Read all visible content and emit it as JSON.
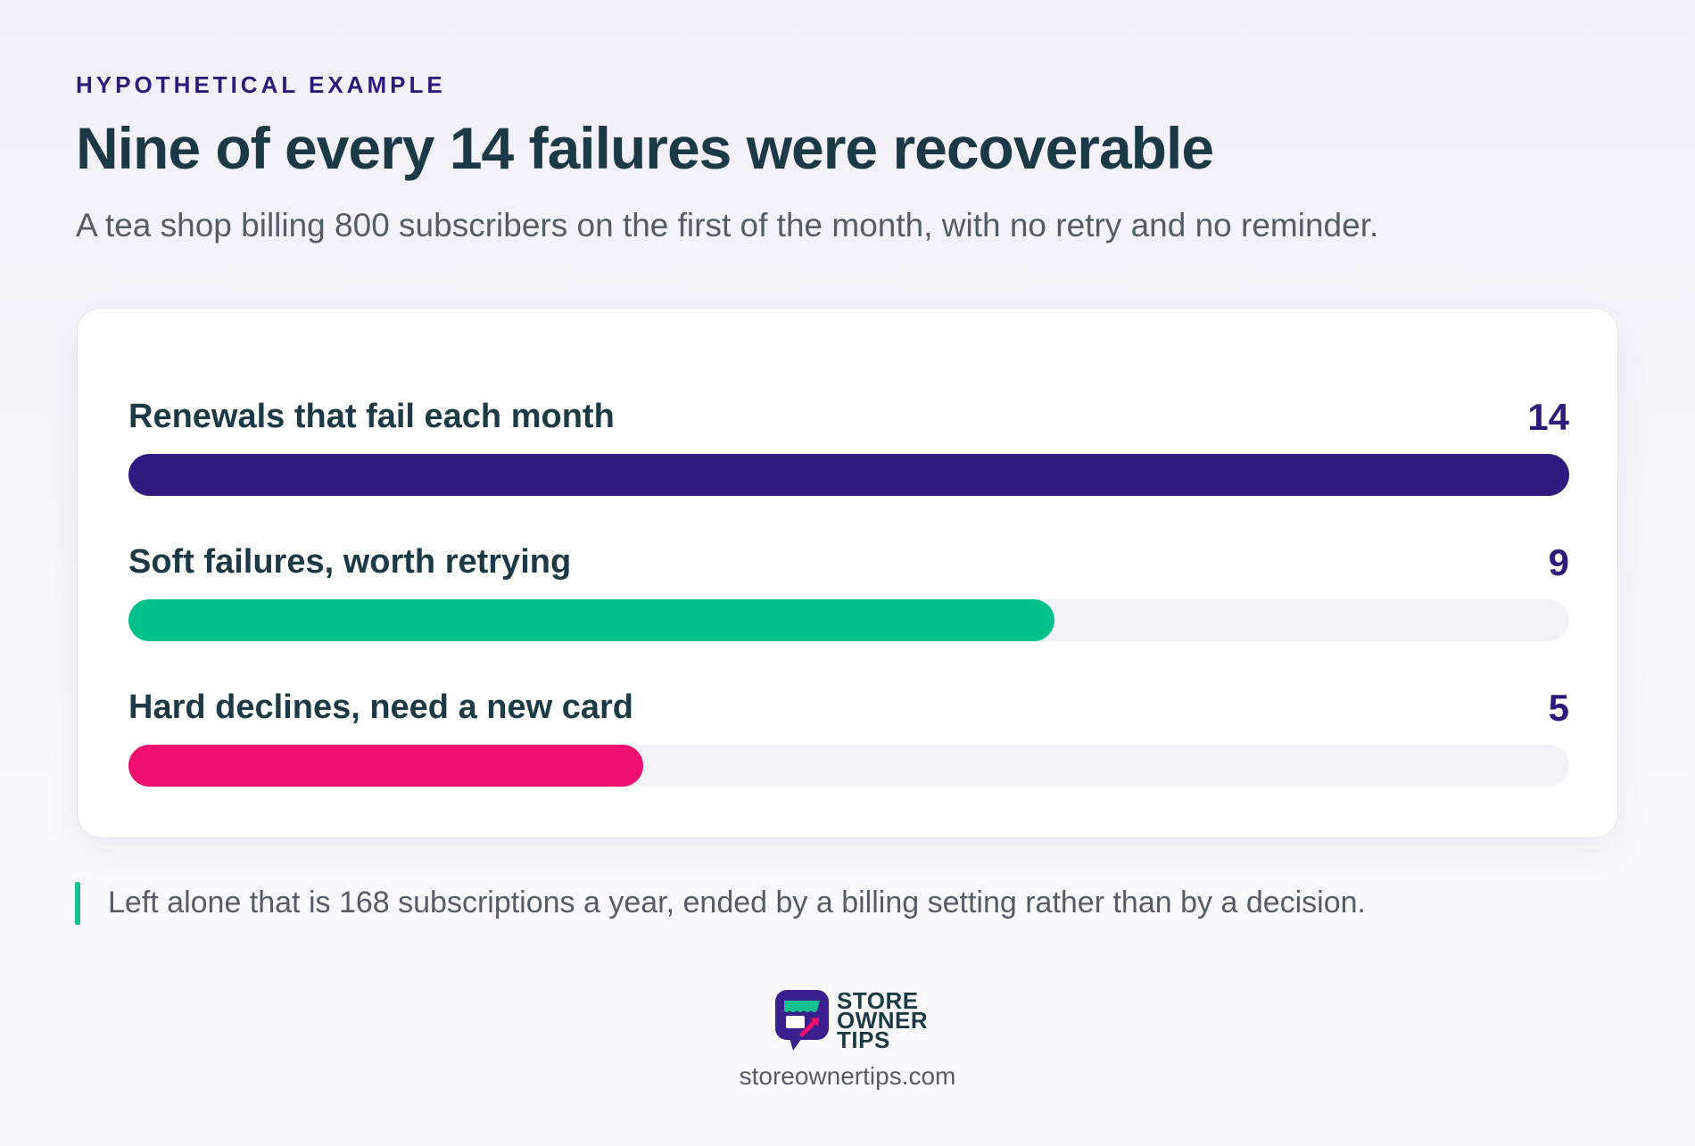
{
  "header": {
    "eyebrow": "HYPOTHETICAL EXAMPLE",
    "title": "Nine of every 14 failures were recoverable",
    "subtitle": "A tea shop billing 800 subscribers on the first of the month, with no retry and no reminder."
  },
  "chart_data": {
    "type": "bar",
    "orientation": "horizontal",
    "categories": [
      "Renewals that fail each month",
      "Soft failures, worth retrying",
      "Hard declines, need a new card"
    ],
    "values": [
      14,
      9,
      5
    ],
    "xlim": [
      0,
      14
    ],
    "colors": [
      "#2e1a80",
      "#00c08b",
      "#ee0f6e"
    ],
    "track_color": "#f2f2f7",
    "grid": false
  },
  "note": "Left alone that is 168 subscriptions a year, ended by a billing setting rather than by a decision.",
  "footer": {
    "logo_lines": [
      "STORE",
      "OWNER",
      "TIPS"
    ],
    "site": "storeownertips.com"
  }
}
